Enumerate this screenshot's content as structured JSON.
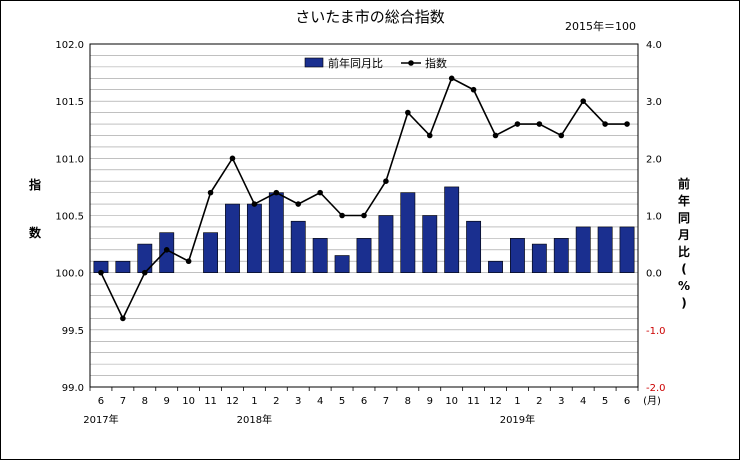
{
  "chart_data": {
    "type": "bar+line",
    "title": "さいたま市の総合指数",
    "base_note": "2015年＝100",
    "categories": [
      "6",
      "7",
      "8",
      "9",
      "10",
      "11",
      "12",
      "1",
      "2",
      "3",
      "4",
      "5",
      "6",
      "7",
      "8",
      "9",
      "10",
      "11",
      "12",
      "1",
      "2",
      "3",
      "4",
      "5",
      "6"
    ],
    "category_unit": "(月)",
    "year_labels": [
      {
        "label": "2017年",
        "index": 0
      },
      {
        "label": "2018年",
        "index": 7
      },
      {
        "label": "2019年",
        "index": 19
      }
    ],
    "series": [
      {
        "name": "前年同月比",
        "type": "bar",
        "axis": "right",
        "color": "#1a2f8f",
        "values": [
          0.2,
          0.2,
          0.5,
          0.7,
          0.0,
          0.7,
          1.2,
          1.2,
          1.4,
          0.9,
          0.6,
          0.3,
          0.6,
          1.0,
          1.4,
          1.0,
          1.5,
          0.9,
          0.2,
          0.6,
          0.5,
          0.6,
          0.8,
          0.8,
          0.8
        ]
      },
      {
        "name": "指数",
        "type": "line",
        "axis": "left",
        "color": "#000000",
        "values": [
          100.0,
          99.6,
          100.0,
          100.2,
          100.1,
          100.7,
          101.0,
          100.6,
          100.7,
          100.6,
          100.7,
          100.5,
          100.5,
          100.8,
          101.4,
          101.2,
          101.7,
          101.6,
          101.2,
          101.3,
          101.3,
          101.2,
          101.5,
          101.3,
          101.3
        ]
      }
    ],
    "y_left": {
      "label": "指数",
      "lim": [
        99.0,
        102.0
      ],
      "ticks": [
        "99.0",
        "99.5",
        "100.0",
        "100.5",
        "101.0",
        "101.5",
        "102.0"
      ]
    },
    "y_right": {
      "label": "前年同月比(%)",
      "lim": [
        -2.0,
        4.0
      ],
      "ticks": [
        "-2.0",
        "-1.0",
        "0.0",
        "1.0",
        "2.0",
        "3.0",
        "4.0"
      ],
      "negative_color": "#cc0000"
    },
    "legend_position": "top-center",
    "grid": true
  }
}
